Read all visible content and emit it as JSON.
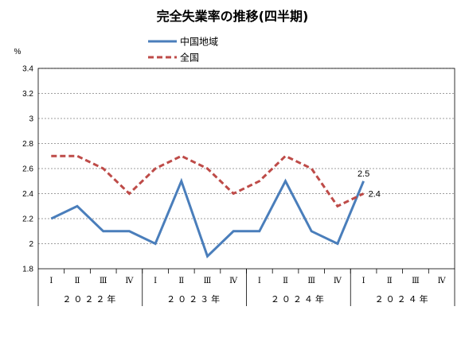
{
  "chart_data": {
    "type": "line",
    "title": "完全失業率の推移(四半期)",
    "ylabel": "%",
    "ylim": [
      1.8,
      3.4
    ],
    "yticks": [
      "1.8",
      "2",
      "2.2",
      "2.4",
      "2.6",
      "2.8",
      "3",
      "3.2",
      "3.4"
    ],
    "grid": true,
    "legend_position": "top-center",
    "categories": [
      "Ⅰ",
      "Ⅱ",
      "Ⅲ",
      "Ⅳ",
      "Ⅰ",
      "Ⅱ",
      "Ⅲ",
      "Ⅳ",
      "Ⅰ",
      "Ⅱ",
      "Ⅲ",
      "Ⅳ",
      "Ⅰ",
      "Ⅱ",
      "Ⅲ",
      "Ⅳ"
    ],
    "year_groups": [
      {
        "label": "２０２２年",
        "count": 4
      },
      {
        "label": "２０２３年",
        "count": 4
      },
      {
        "label": "２０２４年",
        "count": 4
      },
      {
        "label": "２０２４年",
        "count": 4
      }
    ],
    "series": [
      {
        "name": "中国地域",
        "color": "#4a7ebb",
        "dash": false,
        "values": [
          2.2,
          2.3,
          2.1,
          2.1,
          2.0,
          2.5,
          1.9,
          2.1,
          2.1,
          2.5,
          2.1,
          2.0,
          2.5,
          null,
          null,
          null
        ],
        "data_label": {
          "index": 12,
          "text": "2.5"
        }
      },
      {
        "name": "全国",
        "color": "#be4b48",
        "dash": true,
        "values": [
          2.7,
          2.7,
          2.6,
          2.4,
          2.6,
          2.7,
          2.6,
          2.4,
          2.5,
          2.7,
          2.6,
          2.3,
          2.4,
          null,
          null,
          null
        ],
        "data_label": {
          "index": 12,
          "text": "2.4"
        }
      }
    ]
  }
}
